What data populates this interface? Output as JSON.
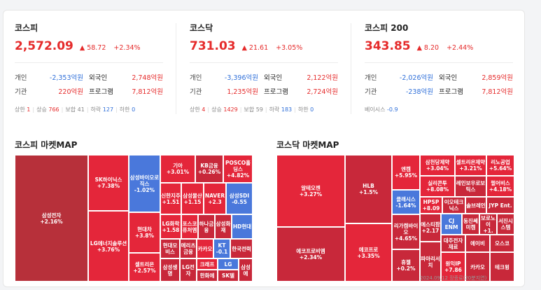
{
  "kospi": {
    "name": "코스피",
    "value": "2,572.09",
    "change": "▲ 58.72",
    "pct": "+2.34%",
    "row1": {
      "l1": "개인",
      "v1": "-2,353억원",
      "l2": "외국인",
      "v2": "2,748억원"
    },
    "row2": {
      "l1": "기관",
      "v1": "220억원",
      "l2": "프로그램",
      "v2": "7,812억원"
    },
    "stats": {
      "up_lim_l": "상한",
      "up_lim": "1",
      "up_l": "상승",
      "up": "766",
      "flat_l": "보합",
      "flat": "41",
      "down_l": "하락",
      "down": "127",
      "down_lim_l": "하한",
      "down_lim": "0"
    }
  },
  "kosdaq": {
    "name": "코스닥",
    "value": "731.03",
    "change": "▲ 21.61",
    "pct": "+3.05%",
    "row1": {
      "l1": "개인",
      "v1": "-3,396억원",
      "l2": "외국인",
      "v2": "2,122억원"
    },
    "row2": {
      "l1": "기관",
      "v1": "1,235억원",
      "l2": "프로그램",
      "v2": "2,724억원"
    },
    "stats": {
      "up_lim_l": "상한",
      "up_lim": "4",
      "up_l": "상승",
      "up": "1429",
      "flat_l": "보합",
      "flat": "59",
      "down_l": "하락",
      "down": "183",
      "down_lim_l": "하한",
      "down_lim": "0"
    }
  },
  "kospi200": {
    "name": "코스피 200",
    "value": "343.85",
    "change": "▲ 8.20",
    "pct": "+2.44%",
    "row1": {
      "l1": "개인",
      "v1": "-2,026억원",
      "l2": "외국인",
      "v2": "2,859억원"
    },
    "row2": {
      "l1": "기관",
      "v1": "-238억원",
      "l2": "프로그램",
      "v2": "7,812억원"
    },
    "basis_l": "베이시스",
    "basis": "-0.9"
  },
  "kospi_map": {
    "title": "코스피 마켓MAP",
    "tiles": [
      {
        "n": "삼성전자",
        "p": "+2.16%"
      },
      {
        "n": "SK하이닉스",
        "p": "+7.38%"
      },
      {
        "n": "LG에너지솔루션",
        "p": "+3.76%"
      },
      {
        "n": "삼성바이오로직스",
        "p": "-1.02%"
      },
      {
        "n": "현대차",
        "p": "+3.8%"
      },
      {
        "n": "셀트리온",
        "p": "+2.57%"
      },
      {
        "n": "기아",
        "p": "+3.01%"
      },
      {
        "n": "KB금융",
        "p": "+0.26%"
      },
      {
        "n": "POSCO홀딩스",
        "p": "+4.82%"
      },
      {
        "n": "신한지주",
        "p": "+1.51"
      },
      {
        "n": "삼성물산",
        "p": "+1.15"
      },
      {
        "n": "NAVER",
        "p": "+2.3"
      },
      {
        "n": "삼성SDI",
        "p": "-0.55"
      },
      {
        "n": "LG화학",
        "p": "+1.58"
      },
      {
        "n": "포스코퓨처엠",
        "p": ""
      },
      {
        "n": "하나금융",
        "p": ""
      },
      {
        "n": "삼성화재",
        "p": ""
      },
      {
        "n": "HD현대",
        "p": ""
      },
      {
        "n": "현대모비스",
        "p": ""
      },
      {
        "n": "메리츠금융",
        "p": ""
      },
      {
        "n": "카카오",
        "p": ""
      },
      {
        "n": "KT",
        "p": "-0.1"
      },
      {
        "n": "한국전력",
        "p": ""
      },
      {
        "n": "삼성생명",
        "p": ""
      },
      {
        "n": "LG전자",
        "p": ""
      },
      {
        "n": "크래프",
        "p": ""
      },
      {
        "n": "한화에",
        "p": ""
      },
      {
        "n": "LG",
        "p": ""
      },
      {
        "n": "SK텔",
        "p": ""
      },
      {
        "n": "삼성에",
        "p": ""
      }
    ]
  },
  "kosdaq_map": {
    "title": "코스닥 마켓MAP",
    "tiles": [
      {
        "n": "알테오젠",
        "p": "+3.27%"
      },
      {
        "n": "에코프로비엠",
        "p": "+2.34%"
      },
      {
        "n": "HLB",
        "p": "+1.5%"
      },
      {
        "n": "에코프로",
        "p": "+3.35%"
      },
      {
        "n": "엔켐",
        "p": "+5.95%"
      },
      {
        "n": "삼천당제약",
        "p": "+3.04%"
      },
      {
        "n": "셀트리온제약",
        "p": "+3.21%"
      },
      {
        "n": "리노공업",
        "p": "+5.64%"
      },
      {
        "n": "클래시스",
        "p": "-1.64%"
      },
      {
        "n": "실리콘투",
        "p": "+8.08%"
      },
      {
        "n": "레인보우로보틱스",
        "p": ""
      },
      {
        "n": "펄어비스",
        "p": "+4.18%"
      },
      {
        "n": "HPSP",
        "p": "+8.09"
      },
      {
        "n": "이오테크닉스",
        "p": ""
      },
      {
        "n": "솔브레인",
        "p": ""
      },
      {
        "n": "JYP Ent.",
        "p": ""
      },
      {
        "n": "리가켐바이오",
        "p": "+4.65%"
      },
      {
        "n": "에스티팜",
        "p": "+2.17"
      },
      {
        "n": "CJ ENM",
        "p": ""
      },
      {
        "n": "동진쎄미켐",
        "p": ""
      },
      {
        "n": "보로노이",
        "p": "+1."
      },
      {
        "n": "서진시스템",
        "p": ""
      },
      {
        "n": "대주전자재료",
        "p": ""
      },
      {
        "n": "에이비",
        "p": ""
      },
      {
        "n": "오스코",
        "p": ""
      },
      {
        "n": "휴젤",
        "p": "+0.2%"
      },
      {
        "n": "파마리서치",
        "p": ""
      },
      {
        "n": "원익IP",
        "p": "+7.86"
      },
      {
        "n": "카카오",
        "p": ""
      },
      {
        "n": "테크윙",
        "p": ""
      }
    ]
  },
  "footer": "2024.09.12 장종료(20분지연)"
}
